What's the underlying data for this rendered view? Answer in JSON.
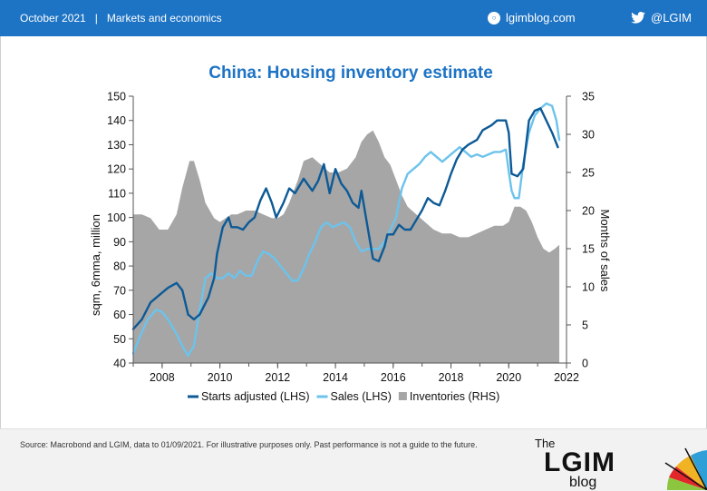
{
  "header": {
    "date": "October 2021",
    "separator": "|",
    "section": "Markets and economics",
    "blog": "lgimblog.com",
    "twitter": "@LGIM"
  },
  "footer": {
    "source": "Source: Macrobond and LGIM,  data to 01/09/2021. For illustrative purposes only. Past performance is not a guide to the future.",
    "brand_the": "The",
    "brand_name": "LGIM",
    "brand_blog": "blog"
  },
  "colors": {
    "header_bg": "#1d73c4",
    "title": "#1d73c4",
    "starts": "#0d5a96",
    "sales": "#6cc3ec",
    "inventories": "#a6a6a6"
  },
  "chart_data": {
    "type": "line",
    "title": "China: Housing inventory estimate",
    "ylabel": "sqm, 6mma, million",
    "y2label": "Months of sales",
    "ylim": [
      40,
      150
    ],
    "y2lim": [
      0,
      35
    ],
    "xlim": [
      2007.0,
      2022.0
    ],
    "xticks": [
      "2008",
      "2010",
      "2012",
      "2014",
      "2016",
      "2018",
      "2020",
      "2022"
    ],
    "yticks": [
      40,
      50,
      60,
      70,
      80,
      90,
      100,
      110,
      120,
      130,
      140,
      150
    ],
    "y2ticks": [
      0,
      5,
      10,
      15,
      20,
      25,
      30,
      35
    ],
    "grid": false,
    "legend_position": "bottom",
    "series": [
      {
        "name": "Starts adjusted (LHS)",
        "axis": "left",
        "x": [
          2007.0,
          2007.3,
          2007.6,
          2007.9,
          2008.2,
          2008.5,
          2008.7,
          2008.9,
          2009.1,
          2009.3,
          2009.6,
          2009.8,
          2009.9,
          2010.1,
          2010.3,
          2010.4,
          2010.6,
          2010.8,
          2011.0,
          2011.2,
          2011.4,
          2011.6,
          2011.8,
          2011.95,
          2012.2,
          2012.4,
          2012.6,
          2012.9,
          2013.2,
          2013.4,
          2013.6,
          2013.8,
          2014.0,
          2014.2,
          2014.4,
          2014.6,
          2014.8,
          2014.9,
          2015.1,
          2015.3,
          2015.5,
          2015.7,
          2015.8,
          2016.0,
          2016.2,
          2016.4,
          2016.6,
          2016.8,
          2017.0,
          2017.2,
          2017.4,
          2017.6,
          2017.8,
          2018.0,
          2018.2,
          2018.4,
          2018.6,
          2018.9,
          2019.1,
          2019.4,
          2019.6,
          2019.9,
          2020.0,
          2020.1,
          2020.3,
          2020.5,
          2020.7,
          2020.9,
          2021.1,
          2021.3,
          2021.5,
          2021.7
        ],
        "y": [
          54,
          58,
          65,
          68,
          71,
          73,
          70,
          60,
          58,
          60,
          67,
          75,
          85,
          96,
          100,
          96,
          96,
          95,
          98,
          100,
          107,
          112,
          106,
          100,
          106,
          112,
          110,
          116,
          111,
          115,
          122,
          110,
          120,
          114,
          111,
          106,
          104,
          111,
          97,
          83,
          82,
          88,
          93,
          93,
          97,
          95,
          95,
          99,
          103,
          108,
          106,
          105,
          111,
          118,
          124,
          128,
          130,
          132,
          136,
          138,
          140,
          140,
          135,
          118,
          117,
          120,
          140,
          144,
          145,
          140,
          135,
          129
        ]
      },
      {
        "name": "Sales (LHS)",
        "axis": "left",
        "x": [
          2007.0,
          2007.2,
          2007.5,
          2007.8,
          2008.0,
          2008.2,
          2008.5,
          2008.7,
          2008.9,
          2009.1,
          2009.3,
          2009.5,
          2009.7,
          2009.9,
          2010.1,
          2010.3,
          2010.5,
          2010.7,
          2010.9,
          2011.1,
          2011.3,
          2011.5,
          2011.7,
          2011.9,
          2012.1,
          2012.3,
          2012.5,
          2012.7,
          2012.9,
          2013.1,
          2013.3,
          2013.5,
          2013.7,
          2013.9,
          2014.1,
          2014.3,
          2014.5,
          2014.7,
          2014.9,
          2015.1,
          2015.3,
          2015.5,
          2015.7,
          2015.9,
          2016.1,
          2016.3,
          2016.5,
          2016.7,
          2016.9,
          2017.1,
          2017.3,
          2017.5,
          2017.7,
          2017.9,
          2018.1,
          2018.3,
          2018.5,
          2018.7,
          2018.9,
          2019.1,
          2019.3,
          2019.5,
          2019.7,
          2019.9,
          2020.0,
          2020.1,
          2020.2,
          2020.35,
          2020.5,
          2020.7,
          2020.9,
          2021.1,
          2021.3,
          2021.5,
          2021.65,
          2021.75
        ],
        "y": [
          44,
          50,
          58,
          62,
          61,
          58,
          52,
          47,
          43,
          47,
          62,
          75,
          77,
          75,
          75,
          77,
          75,
          78,
          76,
          76,
          82,
          86,
          85,
          83,
          80,
          77,
          74,
          74,
          79,
          85,
          90,
          96,
          98,
          96,
          97,
          98,
          96,
          90,
          86,
          87,
          87,
          87,
          90,
          95,
          100,
          112,
          118,
          120,
          122,
          125,
          127,
          125,
          123,
          125,
          127,
          129,
          127,
          125,
          126,
          125,
          126,
          127,
          127,
          128,
          119,
          111,
          108,
          108,
          122,
          135,
          142,
          145,
          147,
          146,
          140,
          132
        ]
      },
      {
        "name": "Inventories (RHS)",
        "axis": "right",
        "type": "area",
        "x": [
          2007.0,
          2007.3,
          2007.6,
          2007.9,
          2008.2,
          2008.5,
          2008.7,
          2008.95,
          2009.1,
          2009.3,
          2009.5,
          2009.8,
          2010.0,
          2010.2,
          2010.4,
          2010.6,
          2010.9,
          2011.2,
          2011.5,
          2011.8,
          2012.0,
          2012.2,
          2012.4,
          2012.7,
          2012.9,
          2013.2,
          2013.5,
          2013.8,
          2014.1,
          2014.4,
          2014.7,
          2014.9,
          2015.1,
          2015.3,
          2015.5,
          2015.7,
          2015.9,
          2016.1,
          2016.3,
          2016.5,
          2016.8,
          2017.1,
          2017.4,
          2017.7,
          2018.0,
          2018.3,
          2018.6,
          2018.9,
          2019.2,
          2019.5,
          2019.8,
          2020.0,
          2020.2,
          2020.4,
          2020.6,
          2020.8,
          2021.0,
          2021.2,
          2021.4,
          2021.6,
          2021.75
        ],
        "y": [
          19.5,
          19.5,
          19,
          17.5,
          17.5,
          19.5,
          23,
          26.5,
          26.5,
          24,
          21,
          19,
          18.5,
          19,
          19.5,
          19.5,
          20,
          20,
          19.5,
          19,
          19,
          19.5,
          21,
          24,
          26.5,
          27,
          26,
          25,
          25,
          25.5,
          27,
          29,
          30,
          30.5,
          29,
          27,
          26,
          24,
          22,
          20.5,
          19.5,
          18.5,
          17.5,
          17,
          17,
          16.5,
          16.5,
          17,
          17.5,
          18,
          18,
          18.5,
          20.5,
          20.5,
          20,
          18.5,
          16.5,
          15,
          14.5,
          15,
          15.5
        ]
      }
    ]
  }
}
